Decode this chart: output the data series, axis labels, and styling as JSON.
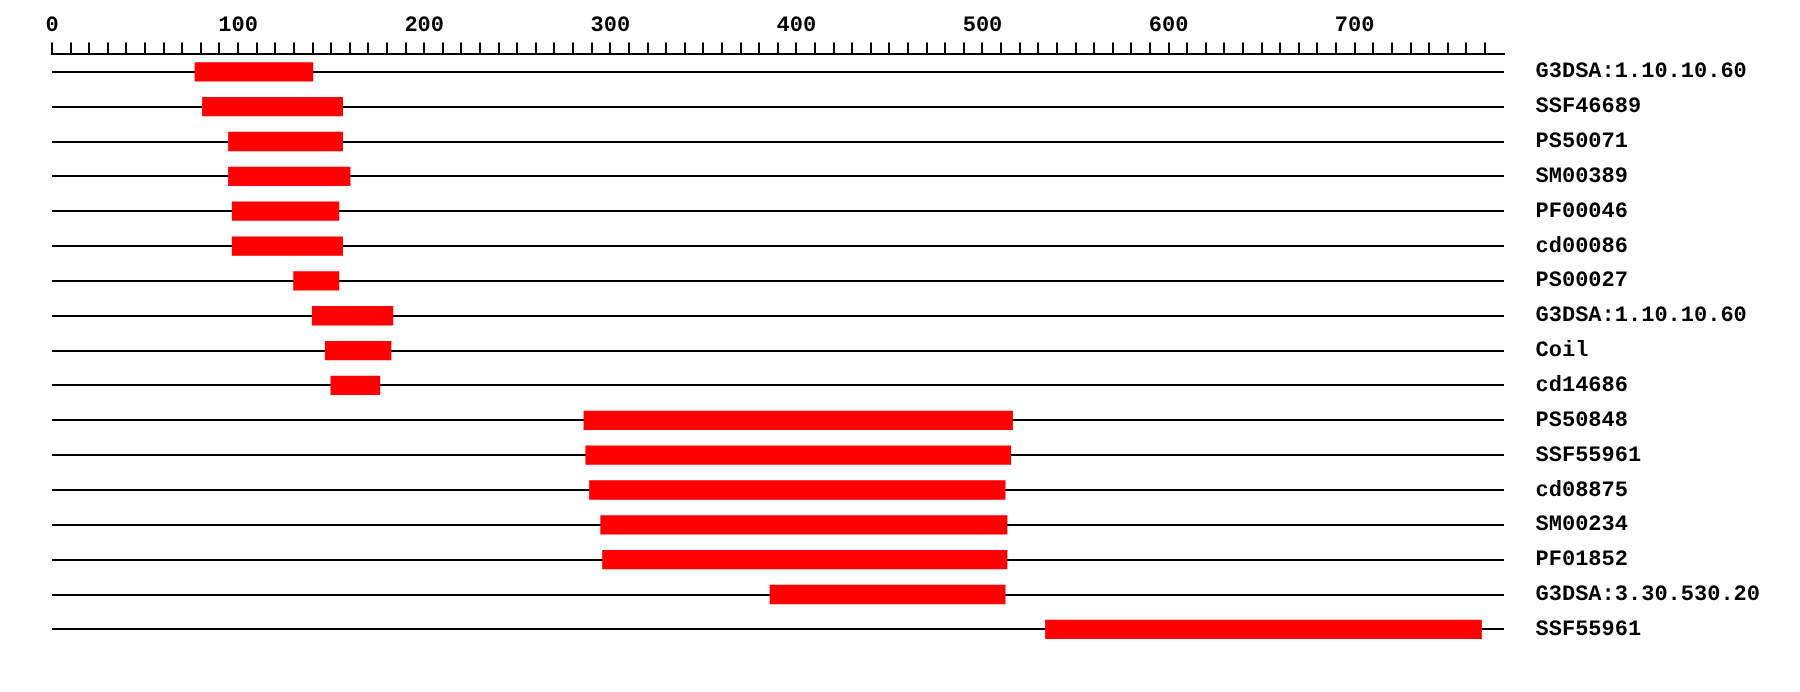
{
  "chart_data": {
    "type": "bar",
    "orientation": "horizontal",
    "categories": [
      "G3DSA:1.10.10.60",
      "SSF46689",
      "PS50071",
      "SM00389",
      "PF00046",
      "cd00086",
      "PS00027",
      "G3DSA:1.10.10.60",
      "Coil",
      "cd14686",
      "PS50848",
      "SSF55961",
      "cd08875",
      "SM00234",
      "PF01852",
      "G3DSA:3.30.530.20",
      "SSF55961"
    ],
    "base": [
      77,
      81,
      95,
      95,
      97,
      97,
      130,
      140,
      147,
      150,
      286,
      287,
      289,
      295,
      296,
      386,
      534
    ],
    "values": [
      63,
      75,
      61,
      65,
      57,
      59,
      24,
      43,
      35,
      26,
      230,
      228,
      223,
      218,
      217,
      126,
      234
    ],
    "color": "#ff0000",
    "xlim": [
      0,
      780
    ],
    "xticks": [
      0,
      {
        "value": 10,
        "label": null
      },
      {
        "value": 20,
        "label": null
      },
      {
        "value": 30,
        "label": null
      },
      {
        "value": 40,
        "label": null
      },
      {
        "value": 50,
        "label": null
      },
      {
        "value": 60,
        "label": null
      },
      {
        "value": 70,
        "label": null
      },
      {
        "value": 80,
        "label": null
      },
      {
        "value": 90,
        "label": null
      },
      100,
      {
        "value": 110,
        "label": null
      },
      {
        "value": 120,
        "label": null
      },
      {
        "value": 130,
        "label": null
      },
      {
        "value": 140,
        "label": null
      },
      {
        "value": 150,
        "label": null
      },
      {
        "value": 160,
        "label": null
      },
      {
        "value": 170,
        "label": null
      },
      {
        "value": 180,
        "label": null
      },
      {
        "value": 190,
        "label": null
      },
      200,
      {
        "value": 210,
        "label": null
      },
      {
        "value": 220,
        "label": null
      },
      {
        "value": 230,
        "label": null
      },
      {
        "value": 240,
        "label": null
      },
      {
        "value": 250,
        "label": null
      },
      {
        "value": 260,
        "label": null
      },
      {
        "value": 270,
        "label": null
      },
      {
        "value": 280,
        "label": null
      },
      {
        "value": 290,
        "label": null
      },
      300,
      {
        "value": 310,
        "label": null
      },
      {
        "value": 320,
        "label": null
      },
      {
        "value": 330,
        "label": null
      },
      {
        "value": 340,
        "label": null
      },
      {
        "value": 350,
        "label": null
      },
      {
        "value": 360,
        "label": null
      },
      {
        "value": 370,
        "label": null
      },
      {
        "value": 380,
        "label": null
      },
      {
        "value": 390,
        "label": null
      },
      400,
      {
        "value": 410,
        "label": null
      },
      {
        "value": 420,
        "label": null
      },
      {
        "value": 430,
        "label": null
      },
      {
        "value": 440,
        "label": null
      },
      {
        "value": 450,
        "label": null
      },
      {
        "value": 460,
        "label": null
      },
      {
        "value": 470,
        "label": null
      },
      {
        "value": 480,
        "label": null
      },
      {
        "value": 490,
        "label": null
      },
      500,
      {
        "value": 510,
        "label": null
      },
      {
        "value": 520,
        "label": null
      },
      {
        "value": 530,
        "label": null
      },
      {
        "value": 540,
        "label": null
      },
      {
        "value": 550,
        "label": null
      },
      {
        "value": 560,
        "label": null
      },
      {
        "value": 570,
        "label": null
      },
      {
        "value": 580,
        "label": null
      },
      {
        "value": 590,
        "label": null
      },
      600,
      {
        "value": 610,
        "label": null
      },
      {
        "value": 620,
        "label": null
      },
      {
        "value": 630,
        "label": null
      },
      {
        "value": 640,
        "label": null
      },
      {
        "value": 650,
        "label": null
      },
      {
        "value": 660,
        "label": null
      },
      {
        "value": 670,
        "label": null
      },
      {
        "value": 680,
        "label": null
      },
      {
        "value": 690,
        "label": null
      },
      700,
      {
        "value": 710,
        "label": null
      },
      {
        "value": 720,
        "label": null
      },
      {
        "value": 730,
        "label": null
      },
      {
        "value": 740,
        "label": null
      },
      {
        "value": 750,
        "label": null
      },
      {
        "value": 760,
        "label": null
      },
      {
        "value": 770,
        "label": null
      }
    ],
    "grid": "y",
    "legend": false
  }
}
